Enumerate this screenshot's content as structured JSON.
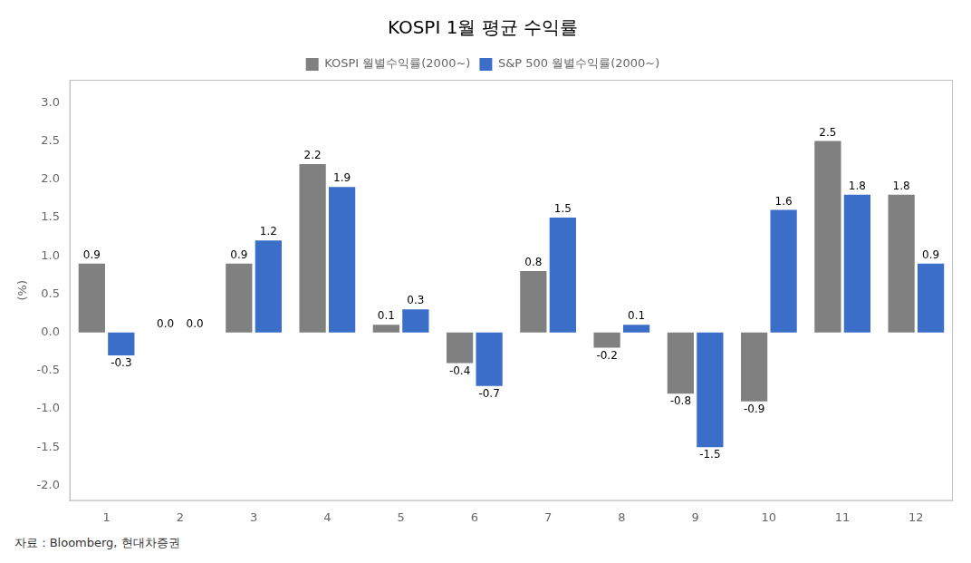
{
  "chart_data": {
    "type": "bar",
    "title": "KOSPI 1월 평균 수익률",
    "ylabel": "(%)",
    "annotations": [
      "자료 : Bloomberg, 현대차증권"
    ],
    "categories": [
      "1",
      "2",
      "3",
      "4",
      "5",
      "6",
      "7",
      "8",
      "9",
      "10",
      "11",
      "12"
    ],
    "series": [
      {
        "name": "KOSPI 월별수익률(2000~)",
        "color": "#808080",
        "values": [
          0.9,
          0.0,
          0.9,
          2.2,
          0.1,
          -0.4,
          0.8,
          -0.2,
          -0.8,
          -0.9,
          2.5,
          1.8
        ],
        "value_labels": [
          "0.9",
          "0.0",
          "0.9",
          "2.2",
          "0.1",
          "-0.4",
          "0.8",
          "-0.2",
          "-0.8",
          "-0.9",
          "2.5",
          "1.8"
        ]
      },
      {
        "name": "S&P 500 월별수익률(2000~)",
        "color": "#3B6EC8",
        "values": [
          -0.3,
          0.0,
          1.2,
          1.9,
          0.3,
          -0.7,
          1.5,
          0.1,
          -1.5,
          1.6,
          1.8,
          0.9
        ],
        "value_labels": [
          "-0.3",
          "0.0",
          "1.2",
          "1.9",
          "0.3",
          "-0.7",
          "1.5",
          "0.1",
          "-1.5",
          "1.6",
          "1.8",
          "0.9"
        ]
      }
    ],
    "ylim": [
      -2.2,
      3.3
    ],
    "yticks": [
      {
        "value": -2,
        "label": "-2.0"
      },
      -1.5,
      {
        "value": -1,
        "label": "-1.0"
      },
      -0.5,
      {
        "value": 0,
        "label": "0.0"
      },
      0.5,
      {
        "value": 1,
        "label": "1.0"
      },
      1.5,
      {
        "value": 2,
        "label": "2.0"
      },
      2.5,
      {
        "value": 3,
        "label": "3.0"
      }
    ],
    "grid": false,
    "legend": "top",
    "data_labels": true
  }
}
